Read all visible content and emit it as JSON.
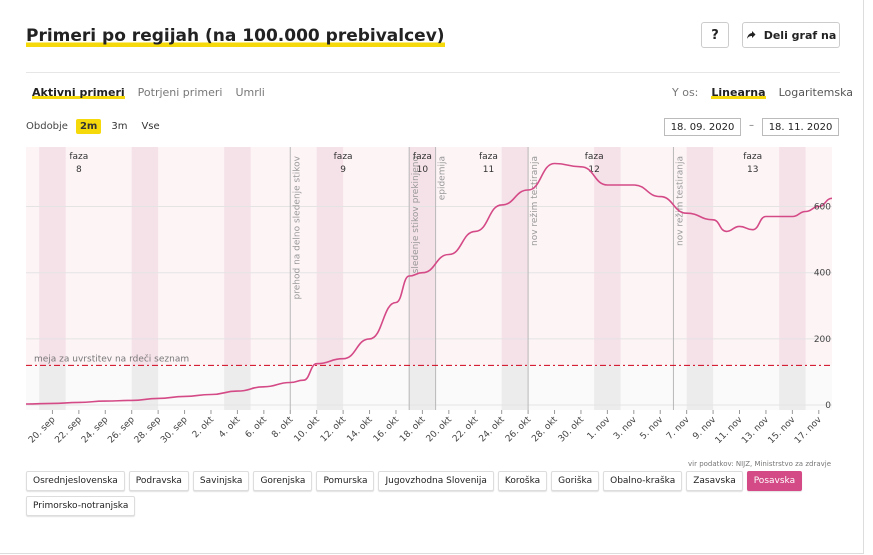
{
  "header": {
    "title": "Primeri po regijah (na 100.000 prebivalcev)",
    "help_label": "?",
    "share_label": "Deli graf na"
  },
  "tabs": [
    {
      "label": "Aktivni primeri",
      "active": true
    },
    {
      "label": "Potrjeni primeri",
      "active": false
    },
    {
      "label": "Umrli",
      "active": false
    }
  ],
  "y_axis": {
    "label": "Y os:",
    "options": [
      {
        "label": "Linearna",
        "active": true
      },
      {
        "label": "Logaritemska",
        "active": false
      }
    ]
  },
  "period": {
    "label": "Obdobje",
    "options": [
      {
        "label": "2m",
        "active": true
      },
      {
        "label": "3m",
        "active": false
      },
      {
        "label": "Vse",
        "active": false
      }
    ],
    "date_from": "18. 09. 2020",
    "date_separator": "–",
    "date_to": "18. 11. 2020"
  },
  "chart_data": {
    "type": "line",
    "x_start": "2020-09-18",
    "x_end": "2020-11-18",
    "x_tick_labels": [
      "20. sep",
      "22. sep",
      "24. sep",
      "26. sep",
      "28. sep",
      "30. sep",
      "2. okt",
      "4. okt",
      "6. okt",
      "8. okt",
      "10. okt",
      "12. okt",
      "14. okt",
      "16. okt",
      "18. okt",
      "20. okt",
      "22. okt",
      "24. okt",
      "26. okt",
      "28. okt",
      "30. okt",
      "1. nov",
      "3. nov",
      "5. nov",
      "7. nov",
      "9. nov",
      "11. nov",
      "13. nov",
      "15. nov",
      "17. nov"
    ],
    "y_ticks": [
      0,
      200,
      400,
      600
    ],
    "ylim": [
      -15,
      780
    ],
    "grid": true,
    "series": [
      {
        "color": "#d44a86",
        "x": [
          "2020-09-18",
          "2020-09-20",
          "2020-09-22",
          "2020-09-24",
          "2020-09-26",
          "2020-09-28",
          "2020-09-30",
          "2020-10-02",
          "2020-10-04",
          "2020-10-06",
          "2020-10-08",
          "2020-10-09",
          "2020-10-10",
          "2020-10-12",
          "2020-10-14",
          "2020-10-16",
          "2020-10-17",
          "2020-10-18",
          "2020-10-20",
          "2020-10-22",
          "2020-10-24",
          "2020-10-26",
          "2020-10-28",
          "2020-10-30",
          "2020-11-01",
          "2020-11-03",
          "2020-11-05",
          "2020-11-07",
          "2020-11-09",
          "2020-11-10",
          "2020-11-11",
          "2020-11-12",
          "2020-11-13",
          "2020-11-14",
          "2020-11-15",
          "2020-11-16",
          "2020-11-17",
          "2020-11-18"
        ],
        "values": [
          3,
          5,
          8,
          12,
          14,
          20,
          26,
          32,
          42,
          55,
          68,
          75,
          125,
          140,
          200,
          310,
          390,
          400,
          455,
          525,
          605,
          650,
          730,
          720,
          665,
          665,
          630,
          580,
          560,
          525,
          540,
          530,
          570,
          570,
          570,
          585,
          600,
          625
        ]
      }
    ],
    "threshold": {
      "value": 120,
      "label": "meja za uvrstitev na rdeči seznam",
      "color": "#d0021b"
    },
    "phases": [
      {
        "label": "faza",
        "number": "8",
        "date": "2020-09-22"
      },
      {
        "label": "faza",
        "number": "9",
        "date": "2020-10-12"
      },
      {
        "label": "faza",
        "number": "10",
        "date": "2020-10-18"
      },
      {
        "label": "faza",
        "number": "11",
        "date": "2020-10-23"
      },
      {
        "label": "faza",
        "number": "12",
        "date": "2020-10-31"
      },
      {
        "label": "faza",
        "number": "13",
        "date": "2020-11-12"
      }
    ],
    "events": [
      {
        "label": "prehod na delno sledenje stikov",
        "date": "2020-10-08"
      },
      {
        "label": "sledenje stikov prekinjeno",
        "date": "2020-10-17"
      },
      {
        "label": "epidemija",
        "date": "2020-10-19"
      },
      {
        "label": "nov režim testiranja",
        "date": "2020-10-26"
      },
      {
        "label": "nov režim testiranja",
        "date": "2020-11-06"
      }
    ]
  },
  "source": "vir podatkov: NIJZ, Ministrstvo za zdravje",
  "regions": [
    {
      "label": "Osrednjeslovenska",
      "active": false
    },
    {
      "label": "Podravska",
      "active": false
    },
    {
      "label": "Savinjska",
      "active": false
    },
    {
      "label": "Gorenjska",
      "active": false
    },
    {
      "label": "Pomurska",
      "active": false
    },
    {
      "label": "Jugovzhodna Slovenija",
      "active": false
    },
    {
      "label": "Koroška",
      "active": false
    },
    {
      "label": "Goriška",
      "active": false
    },
    {
      "label": "Obalno-kraška",
      "active": false
    },
    {
      "label": "Zasavska",
      "active": false
    },
    {
      "label": "Posavska",
      "active": true
    },
    {
      "label": "Primorsko-notranjska",
      "active": false
    }
  ]
}
